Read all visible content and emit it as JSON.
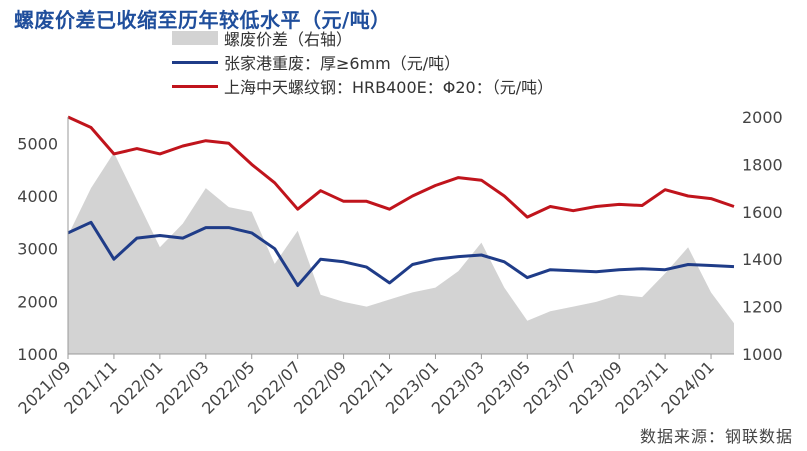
{
  "chart_data": {
    "type": "line",
    "title": "螺废价差已收缩至历年较低水平（元/吨）",
    "source": "数据来源：钢联数据",
    "x_ticks": [
      "2021/09",
      "2021/11",
      "2022/01",
      "2022/03",
      "2022/05",
      "2022/07",
      "2022/09",
      "2022/11",
      "2023/01",
      "2023/03",
      "2023/05",
      "2023/07",
      "2023/09",
      "2023/11",
      "2024/01"
    ],
    "x_range": [
      "2021/09",
      "2024/02"
    ],
    "y_left": {
      "range": [
        1000,
        5500
      ],
      "ticks": [
        1000,
        2000,
        3000,
        4000,
        5000
      ]
    },
    "y_right": {
      "range": [
        1000,
        2000
      ],
      "ticks": [
        1000,
        1200,
        1400,
        1600,
        1800,
        2000
      ]
    },
    "grid": false,
    "legend_position": "top",
    "series": [
      {
        "name": "螺废价差（右轴）",
        "type": "area",
        "axis": "right",
        "color": "#d3d3d3",
        "points": [
          [
            "2021/09",
            1500
          ],
          [
            "2021/10",
            1700
          ],
          [
            "2021/11",
            1850
          ],
          [
            "2021/12",
            1650
          ],
          [
            "2022/01",
            1450
          ],
          [
            "2022/02",
            1550
          ],
          [
            "2022/03",
            1700
          ],
          [
            "2022/04",
            1620
          ],
          [
            "2022/05",
            1600
          ],
          [
            "2022/06",
            1380
          ],
          [
            "2022/07",
            1520
          ],
          [
            "2022/08",
            1250
          ],
          [
            "2022/09",
            1220
          ],
          [
            "2022/10",
            1200
          ],
          [
            "2022/11",
            1230
          ],
          [
            "2022/12",
            1260
          ],
          [
            "2023/01",
            1280
          ],
          [
            "2023/02",
            1350
          ],
          [
            "2023/03",
            1470
          ],
          [
            "2023/04",
            1280
          ],
          [
            "2023/05",
            1140
          ],
          [
            "2023/06",
            1180
          ],
          [
            "2023/07",
            1200
          ],
          [
            "2023/08",
            1220
          ],
          [
            "2023/09",
            1250
          ],
          [
            "2023/10",
            1240
          ],
          [
            "2023/11",
            1340
          ],
          [
            "2023/12",
            1450
          ],
          [
            "2024/01",
            1260
          ],
          [
            "2024/02",
            1130
          ]
        ]
      },
      {
        "name": "张家港重废：厚≥6mm（元/吨）",
        "type": "line",
        "axis": "left",
        "color": "#1f3c88",
        "points": [
          [
            "2021/09",
            3300
          ],
          [
            "2021/10",
            3500
          ],
          [
            "2021/11",
            2800
          ],
          [
            "2021/12",
            3200
          ],
          [
            "2022/01",
            3250
          ],
          [
            "2022/02",
            3200
          ],
          [
            "2022/03",
            3400
          ],
          [
            "2022/04",
            3400
          ],
          [
            "2022/05",
            3300
          ],
          [
            "2022/06",
            3000
          ],
          [
            "2022/07",
            2300
          ],
          [
            "2022/08",
            2800
          ],
          [
            "2022/09",
            2750
          ],
          [
            "2022/10",
            2650
          ],
          [
            "2022/11",
            2350
          ],
          [
            "2022/12",
            2700
          ],
          [
            "2023/01",
            2800
          ],
          [
            "2023/02",
            2850
          ],
          [
            "2023/03",
            2880
          ],
          [
            "2023/04",
            2750
          ],
          [
            "2023/05",
            2450
          ],
          [
            "2023/06",
            2600
          ],
          [
            "2023/07",
            2580
          ],
          [
            "2023/08",
            2560
          ],
          [
            "2023/09",
            2600
          ],
          [
            "2023/10",
            2620
          ],
          [
            "2023/11",
            2600
          ],
          [
            "2023/12",
            2700
          ],
          [
            "2024/01",
            2680
          ],
          [
            "2024/02",
            2660
          ]
        ]
      },
      {
        "name": "上海中天螺纹钢：HRB400E：Φ20：（元/吨）",
        "type": "line",
        "axis": "left",
        "color": "#c0141c",
        "points": [
          [
            "2021/09",
            5500
          ],
          [
            "2021/10",
            5300
          ],
          [
            "2021/11",
            4800
          ],
          [
            "2021/12",
            4900
          ],
          [
            "2022/01",
            4800
          ],
          [
            "2022/02",
            4950
          ],
          [
            "2022/03",
            5050
          ],
          [
            "2022/04",
            5000
          ],
          [
            "2022/05",
            4600
          ],
          [
            "2022/06",
            4250
          ],
          [
            "2022/07",
            3750
          ],
          [
            "2022/08",
            4100
          ],
          [
            "2022/09",
            3900
          ],
          [
            "2022/10",
            3900
          ],
          [
            "2022/11",
            3750
          ],
          [
            "2022/12",
            4000
          ],
          [
            "2023/01",
            4200
          ],
          [
            "2023/02",
            4350
          ],
          [
            "2023/03",
            4300
          ],
          [
            "2023/04",
            4000
          ],
          [
            "2023/05",
            3600
          ],
          [
            "2023/06",
            3800
          ],
          [
            "2023/07",
            3720
          ],
          [
            "2023/08",
            3800
          ],
          [
            "2023/09",
            3840
          ],
          [
            "2023/10",
            3820
          ],
          [
            "2023/11",
            4120
          ],
          [
            "2023/12",
            4000
          ],
          [
            "2024/01",
            3950
          ],
          [
            "2024/02",
            3800
          ]
        ]
      }
    ]
  }
}
